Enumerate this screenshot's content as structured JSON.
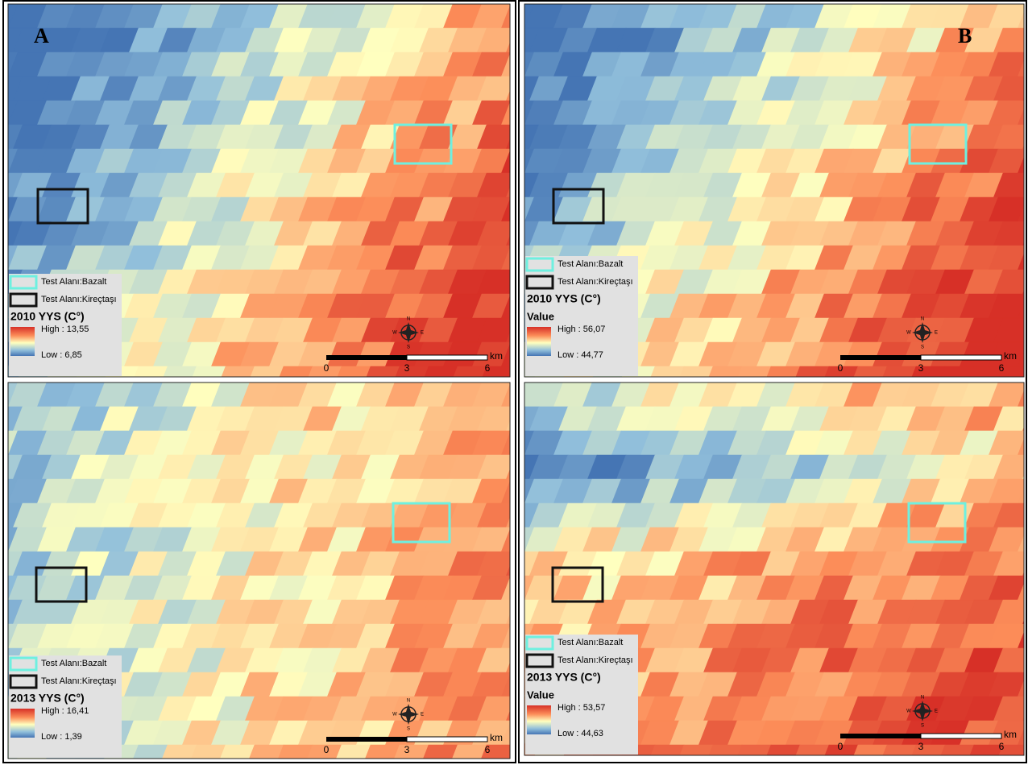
{
  "panels": [
    {
      "letter": "A",
      "legend": {
        "bazalt": "Test Alanı:Bazalt",
        "kirectasi": "Test Alanı:Kireçtaşı",
        "title": "2010 YYS (C°)",
        "high": "High : 13,55",
        "low": "Low : 6,85"
      },
      "scale": {
        "ticks": [
          "0",
          "3",
          "6"
        ],
        "unit": "km"
      }
    },
    {
      "letter": "B",
      "legend": {
        "bazalt": "Test Alanı:Bazalt",
        "kirectasi": "Test Alanı:Kireçtaşı",
        "title": "2010 YYS (C°)",
        "subtitle": "Value",
        "high": "High : 56,07",
        "low": "Low : 44,77"
      },
      "scale": {
        "ticks": [
          "0",
          "3",
          "6"
        ],
        "unit": "km"
      }
    },
    {
      "legend": {
        "bazalt": "Test Alanı:Bazalt",
        "kirectasi": "Test Alanı:Kireçtaşı",
        "title": "2013 YYS (C°)",
        "high": "High : 16,41",
        "low": "Low : 1,39"
      },
      "scale": {
        "ticks": [
          "0",
          "3",
          "6"
        ],
        "unit": "km"
      }
    },
    {
      "legend": {
        "bazalt": "Test Alanı:Bazalt",
        "kirectasi": "Test Alanı:Kireçtaşı",
        "title": "2013 YYS (C°)",
        "subtitle": "Value",
        "high": "High : 53,57",
        "low": "Low : 44,63"
      },
      "scale": {
        "ticks": [
          "0",
          "3",
          "6"
        ],
        "unit": "km"
      }
    }
  ],
  "compass": {
    "n": "N",
    "s": "S",
    "e": "E",
    "w": "W"
  }
}
